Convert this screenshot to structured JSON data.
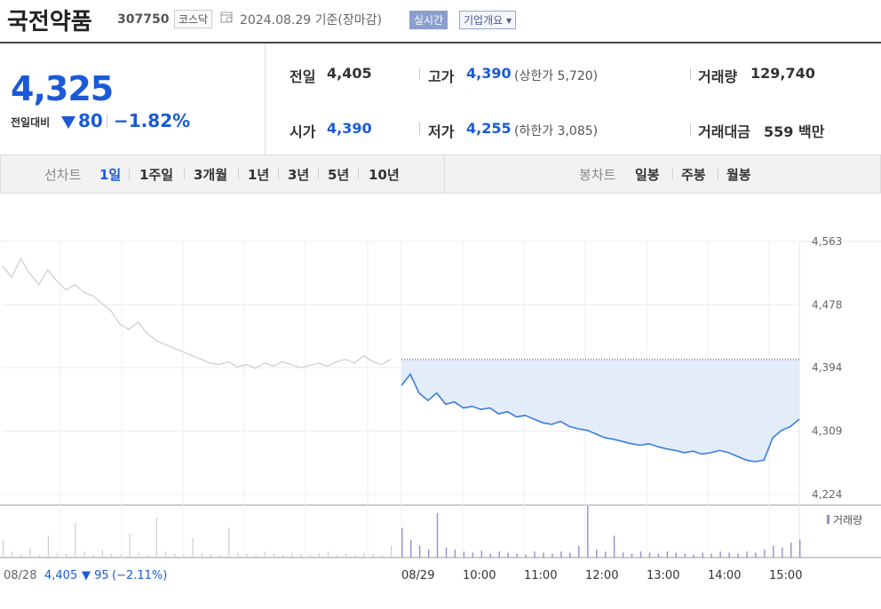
{
  "header": {
    "name": "국전약품",
    "code": "307750",
    "market": "코스닥",
    "date": "2024.08.29 기준(장마감)",
    "live_label": "실시간",
    "info_label": "기업개요 ▾"
  },
  "price": {
    "current": "4,325",
    "change_label": "전일대비",
    "change_value": "80",
    "change_pct": "−1.82%"
  },
  "stats": {
    "prev_label": "전일",
    "prev_value": "4,405",
    "high_label": "고가",
    "high_value": "4,390",
    "upper_label": "(상한가 5,720)",
    "volume_label": "거래량",
    "volume_value": "129,740",
    "open_label": "시가",
    "open_value": "4,390",
    "low_label": "저가",
    "low_value": "4,255",
    "lower_label": "(하한가 3,085)",
    "amount_label": "거래대금",
    "amount_value": "559 백만"
  },
  "periods": {
    "line_label": "선차트",
    "items": [
      "1일",
      "1주일",
      "3개월",
      "1년",
      "3년",
      "5년",
      "10년"
    ],
    "active": "1일",
    "candle_label": "봉차트",
    "candle_items": [
      "일봉",
      "주봉",
      "월봉"
    ]
  },
  "colors": {
    "accent": "#1a5ad6",
    "today_line": "#3b7ddd",
    "prev_line": "#cfcfcf",
    "fill": "#e3edfa",
    "volume": "#9b8bd0"
  },
  "chart_data": {
    "type": "line",
    "ylim": [
      4224,
      4563
    ],
    "yticks": [
      4563,
      4478,
      4394,
      4309,
      4224
    ],
    "prev_close": 4405,
    "x_labels": [
      "08/29",
      "10:00",
      "11:00",
      "12:00",
      "13:00",
      "14:00",
      "15:00"
    ],
    "volume_label": "거래량",
    "footer": {
      "date": "08/28",
      "close": "4,405",
      "change": "▼ 95",
      "pct": "(−2.11%)"
    },
    "series": [
      {
        "period": "08/28",
        "values": [
          4530,
          4515,
          4540,
          4520,
          4505,
          4525,
          4510,
          4498,
          4505,
          4495,
          4490,
          4480,
          4470,
          4452,
          4445,
          4455,
          4440,
          4430,
          4425,
          4420,
          4415,
          4410,
          4405,
          4400,
          4398,
          4402,
          4395,
          4398,
          4393,
          4400,
          4396,
          4402,
          4398,
          4394,
          4397,
          4400,
          4396,
          4402,
          4405,
          4400,
          4410,
          4402,
          4398,
          4405
        ]
      },
      {
        "period": "08/29",
        "values": [
          4370,
          4385,
          4360,
          4350,
          4360,
          4345,
          4348,
          4340,
          4342,
          4338,
          4340,
          4332,
          4335,
          4328,
          4330,
          4325,
          4320,
          4318,
          4322,
          4315,
          4312,
          4310,
          4305,
          4300,
          4298,
          4295,
          4292,
          4290,
          4292,
          4288,
          4285,
          4283,
          4280,
          4282,
          4278,
          4280,
          4283,
          4280,
          4275,
          4270,
          4268,
          4270,
          4300,
          4310,
          4315,
          4325
        ]
      }
    ],
    "volume": {
      "period_08_28": [
        18,
        6,
        4,
        10,
        3,
        22,
        5,
        4,
        35,
        6,
        3,
        8,
        4,
        3,
        24,
        5,
        3,
        40,
        6,
        4,
        3,
        20,
        5,
        4,
        3,
        30,
        5,
        4,
        3,
        6,
        4,
        3,
        5,
        4,
        3,
        4,
        6,
        3,
        4,
        3,
        5,
        4,
        3,
        12
      ],
      "period_08_29": [
        30,
        18,
        12,
        8,
        45,
        10,
        8,
        6,
        5,
        7,
        4,
        6,
        5,
        4,
        3,
        6,
        5,
        4,
        6,
        5,
        12,
        52,
        8,
        6,
        22,
        5,
        4,
        6,
        5,
        4,
        6,
        5,
        4,
        3,
        5,
        4,
        6,
        5,
        4,
        6,
        5,
        8,
        12,
        10,
        15,
        18
      ]
    }
  }
}
